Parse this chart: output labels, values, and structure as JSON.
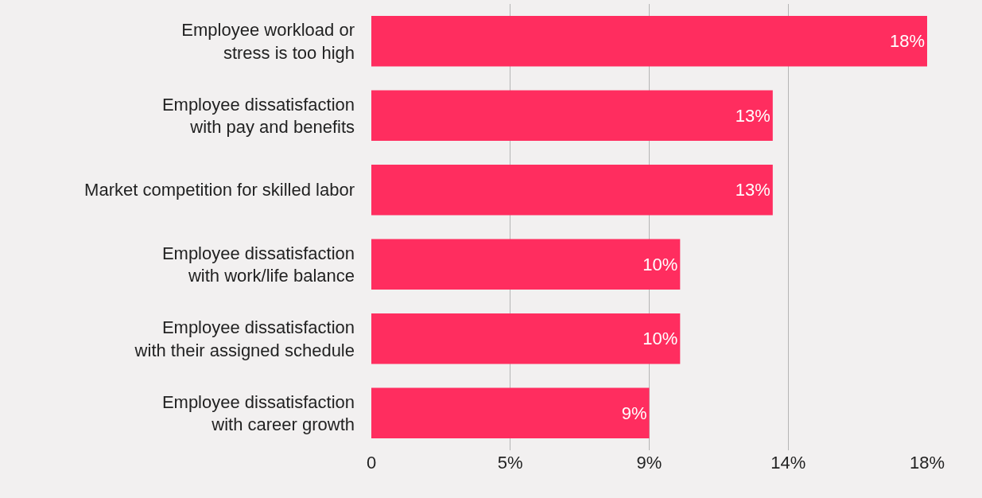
{
  "chart_data": {
    "type": "bar",
    "orientation": "horizontal",
    "categories": [
      "Employee workload or\nstress is too high",
      "Employee dissatisfaction\nwith pay and benefits",
      "Market competition for skilled labor",
      "Employee dissatisfaction\nwith work/life balance",
      "Employee dissatisfaction\nwith their assigned schedule",
      "Employee dissatisfaction\nwith career growth"
    ],
    "values": [
      18,
      13,
      13,
      10,
      10,
      9
    ],
    "value_labels": [
      "18%",
      "13%",
      "13%",
      "10%",
      "10%",
      "9%"
    ],
    "color": "#ff2d5f",
    "xlim": [
      0,
      18
    ],
    "xticks": [
      {
        "value": 0,
        "label": "0"
      },
      {
        "value": 4.5,
        "label": "5%"
      },
      {
        "value": 9,
        "label": "9%"
      },
      {
        "value": 13.5,
        "label": "14%"
      },
      {
        "value": 18,
        "label": "18%"
      }
    ],
    "grid": "x"
  }
}
